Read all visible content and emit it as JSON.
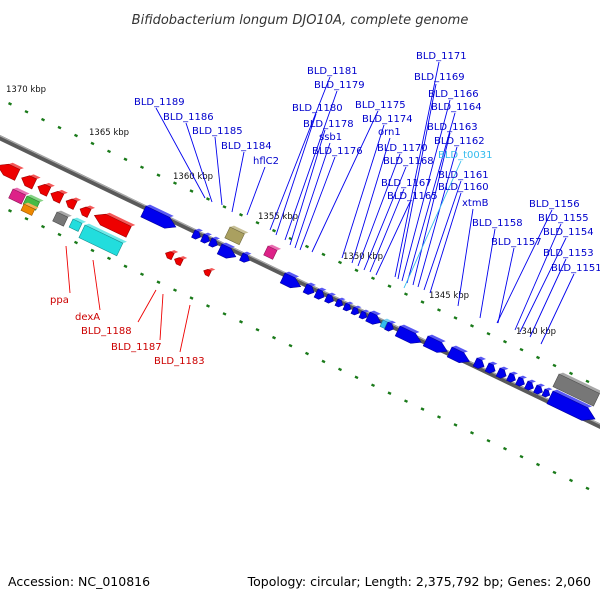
{
  "title": "Bifidobacterium longum DJO10A, complete genome",
  "footer": {
    "accession": "Accession: NC_010816",
    "summary": "Topology: circular; Length: 2,375,792 bp; Genes: 2,060"
  },
  "colors": {
    "forward": "#0000ee",
    "reverse": "#ee0000",
    "trna": "#33bbee",
    "backbone": "#777777",
    "ticks": "#1a7a1a"
  },
  "scale_labels": [
    "1370 kbp",
    "1365 kbp",
    "1360 kbp",
    "1355 kbp",
    "1350 kbp",
    "1345 kbp",
    "1340 kbp"
  ],
  "top_labels": [
    {
      "text": "BLD_1171",
      "color": "#0000cc"
    },
    {
      "text": "BLD_1181",
      "color": "#0000cc"
    },
    {
      "text": "BLD_1169",
      "color": "#0000cc"
    },
    {
      "text": "BLD_1179",
      "color": "#0000cc"
    },
    {
      "text": "BLD_1189",
      "color": "#0000cc"
    },
    {
      "text": "BLD_1166",
      "color": "#0000cc"
    },
    {
      "text": "BLD_1180",
      "color": "#0000cc"
    },
    {
      "text": "BLD_1175",
      "color": "#0000cc"
    },
    {
      "text": "BLD_1164",
      "color": "#0000cc"
    },
    {
      "text": "BLD_1186",
      "color": "#0000cc"
    },
    {
      "text": "BLD_1178",
      "color": "#0000cc"
    },
    {
      "text": "BLD_1174",
      "color": "#0000cc"
    },
    {
      "text": "BLD_1185",
      "color": "#0000cc"
    },
    {
      "text": "BLD_1163",
      "color": "#0000cc"
    },
    {
      "text": "ssb1",
      "color": "#0000cc"
    },
    {
      "text": "orn1",
      "color": "#0000cc"
    },
    {
      "text": "BLD_1184",
      "color": "#0000cc"
    },
    {
      "text": "BLD_1162",
      "color": "#0000cc"
    },
    {
      "text": "BLD_1176",
      "color": "#0000cc"
    },
    {
      "text": "BLD_1170",
      "color": "#0000cc"
    },
    {
      "text": "BLD_t0031",
      "color": "#33bbee"
    },
    {
      "text": "hflC2",
      "color": "#0000cc"
    },
    {
      "text": "BLD_1168",
      "color": "#0000cc"
    },
    {
      "text": "BLD_1161",
      "color": "#0000cc"
    },
    {
      "text": "BLD_1167",
      "color": "#0000cc"
    },
    {
      "text": "BLD_1160",
      "color": "#0000cc"
    },
    {
      "text": "BLD_1165",
      "color": "#0000cc"
    },
    {
      "text": "xtmB",
      "color": "#0000cc"
    },
    {
      "text": "BLD_1156",
      "color": "#0000cc"
    },
    {
      "text": "BLD_1155",
      "color": "#0000cc"
    },
    {
      "text": "BLD_1158",
      "color": "#0000cc"
    },
    {
      "text": "BLD_1154",
      "color": "#0000cc"
    },
    {
      "text": "BLD_1157",
      "color": "#0000cc"
    },
    {
      "text": "BLD_1153",
      "color": "#0000cc"
    },
    {
      "text": "BLD_1151",
      "color": "#0000cc"
    }
  ],
  "bottom_labels": [
    {
      "text": "ppa",
      "color": "#cc0000"
    },
    {
      "text": "dexA",
      "color": "#cc0000"
    },
    {
      "text": "BLD_1188",
      "color": "#cc0000"
    },
    {
      "text": "BLD_1187",
      "color": "#cc0000"
    },
    {
      "text": "BLD_1183",
      "color": "#cc0000"
    }
  ]
}
